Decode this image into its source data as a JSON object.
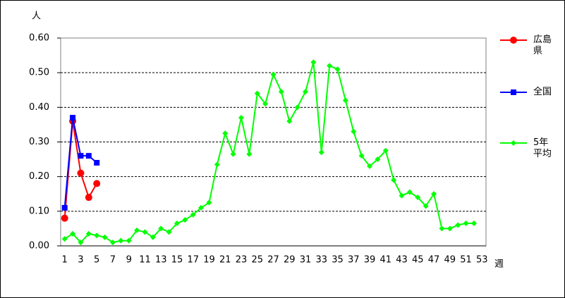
{
  "chart_data": {
    "type": "line",
    "y_label": "人",
    "x_label": "週",
    "categories": [
      1,
      null,
      3,
      null,
      5,
      null,
      7,
      null,
      9,
      null,
      11,
      null,
      13,
      null,
      15,
      null,
      17,
      null,
      19,
      null,
      21,
      null,
      23,
      null,
      25,
      null,
      27,
      null,
      29,
      null,
      31,
      null,
      33,
      null,
      35,
      null,
      37,
      null,
      39,
      null,
      41,
      null,
      43,
      null,
      45,
      null,
      47,
      null,
      49,
      null,
      51,
      null,
      53
    ],
    "series": [
      {
        "name": "広島県",
        "color": "#ff0000",
        "marker": "circle",
        "values": [
          0.08,
          0.36,
          0.21,
          0.14,
          0.18,
          null,
          null,
          null,
          null,
          null,
          null,
          null,
          null,
          null,
          null,
          null,
          null,
          null,
          null,
          null,
          null,
          null,
          null,
          null,
          null,
          null,
          null,
          null,
          null,
          null,
          null,
          null,
          null,
          null,
          null,
          null,
          null,
          null,
          null,
          null,
          null,
          null,
          null,
          null,
          null,
          null,
          null,
          null,
          null,
          null,
          null,
          null,
          null
        ]
      },
      {
        "name": "全国",
        "color": "#0000ff",
        "marker": "square",
        "values": [
          0.11,
          0.37,
          0.26,
          0.26,
          0.24,
          null,
          null,
          null,
          null,
          null,
          null,
          null,
          null,
          null,
          null,
          null,
          null,
          null,
          null,
          null,
          null,
          null,
          null,
          null,
          null,
          null,
          null,
          null,
          null,
          null,
          null,
          null,
          null,
          null,
          null,
          null,
          null,
          null,
          null,
          null,
          null,
          null,
          null,
          null,
          null,
          null,
          null,
          null,
          null,
          null,
          null,
          null,
          null
        ]
      },
      {
        "name": "5年平均",
        "color": "#00ff00",
        "marker": "diamond",
        "values": [
          0.02,
          0.035,
          0.01,
          0.035,
          0.03,
          0.025,
          0.01,
          0.015,
          0.015,
          0.045,
          0.04,
          0.025,
          0.05,
          0.04,
          0.065,
          0.075,
          0.09,
          0.11,
          0.125,
          0.235,
          0.325,
          0.265,
          0.37,
          0.265,
          0.44,
          0.41,
          0.495,
          0.445,
          0.36,
          0.4,
          0.445,
          0.53,
          0.27,
          0.52,
          0.51,
          0.42,
          0.33,
          0.26,
          0.23,
          0.25,
          0.275,
          0.19,
          0.145,
          0.155,
          0.14,
          0.115,
          0.15,
          0.05,
          0.05,
          0.06,
          0.065,
          0.065,
          null
        ]
      }
    ],
    "ylim": [
      0,
      0.6
    ],
    "yticks": [
      {
        "value": 0,
        "label": "0.00"
      },
      {
        "value": 0.1,
        "label": "0.10"
      },
      {
        "value": 0.2,
        "label": "0.20"
      },
      {
        "value": 0.3,
        "label": "0.30"
      },
      {
        "value": 0.4,
        "label": "0.40"
      },
      {
        "value": 0.5,
        "label": "0.50"
      },
      {
        "value": 0.6,
        "label": "0.60"
      }
    ],
    "grid": true
  }
}
